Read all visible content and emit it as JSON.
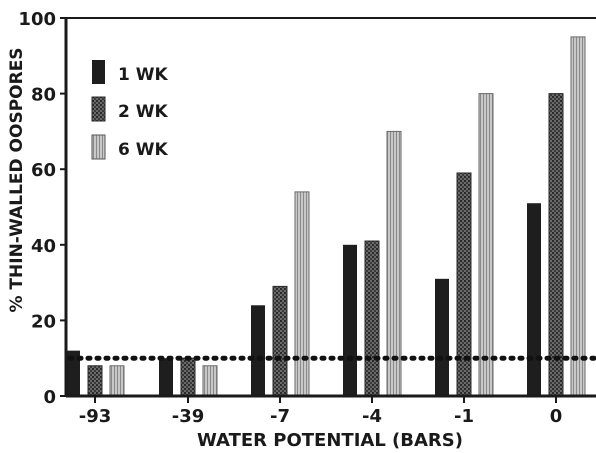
{
  "chart_data": {
    "type": "bar",
    "xlabel": "WATER POTENTIAL (BARS)",
    "ylabel": "% THIN-WALLED OOSPORES",
    "ylim": [
      0,
      100
    ],
    "yticks": [
      "0",
      "20",
      "40",
      "60",
      "80",
      "100"
    ],
    "categories": [
      "-93",
      "-39",
      "-7",
      "-4",
      "-1",
      "0"
    ],
    "series": [
      {
        "name": "1 WK",
        "values": [
          12,
          10,
          24,
          40,
          31,
          51
        ]
      },
      {
        "name": "2 WK",
        "values": [
          8,
          10,
          29,
          41,
          59,
          80
        ]
      },
      {
        "name": "6 WK",
        "values": [
          8,
          8,
          54,
          70,
          80,
          95
        ]
      }
    ],
    "reference_line": 10,
    "legend_position": "top-left",
    "grid": false,
    "colors": {
      "1 WK": "#1e1e1e",
      "2 WK": "#5a5a5a",
      "6 WK": "#bdbdbd",
      "axis": "#1a1a1a"
    }
  }
}
